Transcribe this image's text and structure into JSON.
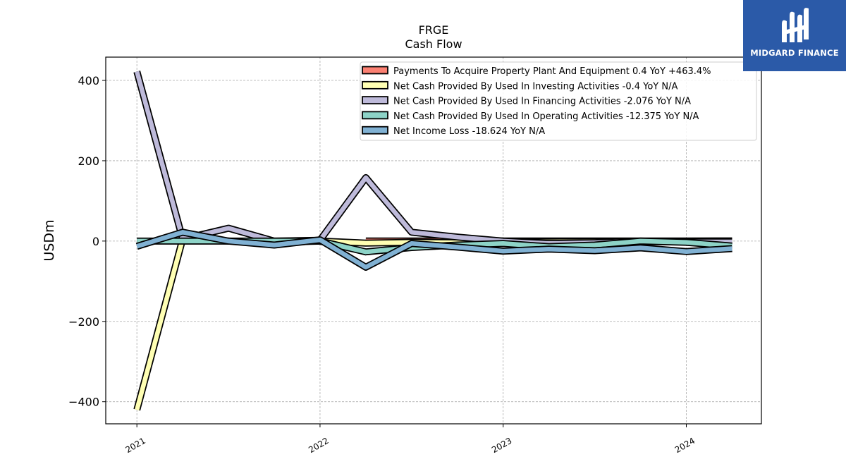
{
  "chart_data": {
    "type": "line",
    "title": "FRGE",
    "subtitle": "Cash Flow",
    "xlabel": "",
    "ylabel": "USDm",
    "x": [
      2021.0,
      2021.25,
      2021.5,
      2021.75,
      2022.0,
      2022.25,
      2022.5,
      2022.75,
      2023.0,
      2023.25,
      2023.5,
      2023.75,
      2024.0,
      2024.25
    ],
    "xlim": [
      2020.83,
      2024.41
    ],
    "ylim": [
      -455,
      458
    ],
    "x_ticks": [
      "2021",
      "2022",
      "2023",
      "2024"
    ],
    "y_ticks": [
      "400",
      "200",
      "0",
      "−200",
      "−400"
    ],
    "grid": true,
    "legend_position": "top-right",
    "series": [
      {
        "name": "Payments To Acquire Property Plant And Equipment  0.4 YoY +463.4%",
        "color": "#fb8072",
        "x": [
          2022.25,
          2022.5,
          2022.75,
          2023.0,
          2023.25,
          2023.5,
          2023.75,
          2024.0,
          2024.25
        ],
        "values": [
          0.3,
          0.3,
          0.2,
          0.2,
          0.2,
          0.2,
          0.1,
          0.1,
          0.4
        ]
      },
      {
        "name": "Net Cash Provided By Used In Investing Activities  -0.4 YoY N/A",
        "color": "#ffffb3",
        "values": [
          -420,
          5,
          0,
          -3,
          0,
          -5,
          -3,
          -4,
          -2,
          -2,
          -1,
          -2,
          -1,
          -0.4
        ]
      },
      {
        "name": "Net Cash Provided By Used In Financing Activities  -2.076 YoY N/A",
        "color": "#bebada",
        "values": [
          422,
          5,
          32,
          0,
          2,
          158,
          22,
          10,
          0,
          -6,
          -4,
          0,
          -2,
          -2.076
        ]
      },
      {
        "name": "Net Cash Provided By Used In Operating Activities  -12.375 YoY N/A",
        "color": "#8dd3c7",
        "values": [
          0,
          0,
          0,
          0,
          0,
          -27,
          -16,
          -10,
          -6,
          -14,
          -10,
          0,
          -3,
          -12.375
        ]
      },
      {
        "name": "Net Income Loss  -18.624 YoY N/A",
        "color": "#80b1d3",
        "values": [
          -13,
          22,
          0,
          -10,
          3,
          -65,
          -6,
          -15,
          -25,
          -20,
          -24,
          -17,
          -26,
          -18.624
        ]
      }
    ]
  },
  "logo": {
    "text": "MIDGARD FINANCE",
    "background": "#2b5aa8"
  }
}
